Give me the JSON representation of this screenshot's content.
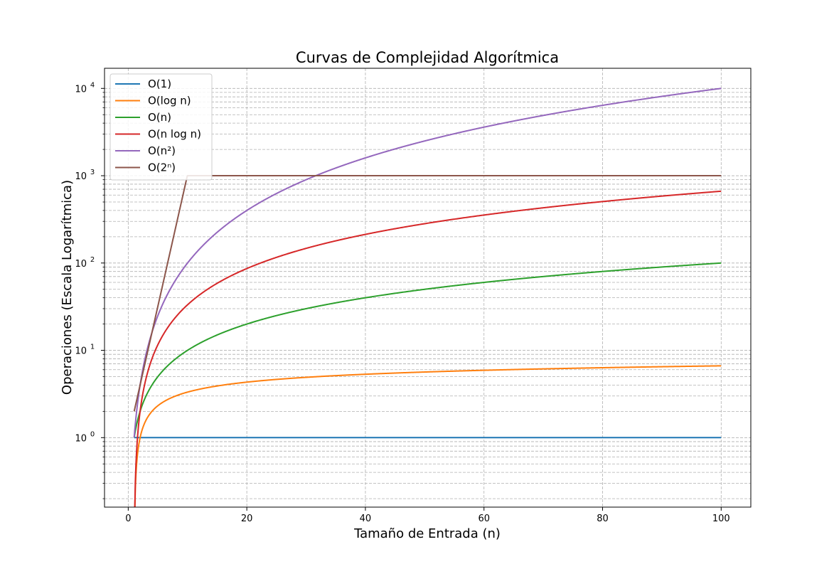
{
  "chart_data": {
    "type": "line",
    "title": "Curvas de Complejidad Algorítmica",
    "xlabel": "Tamaño de Entrada (n)",
    "ylabel": "Operaciones (Escala Logarítmica)",
    "xlim": [
      -4,
      105
    ],
    "ylim": [
      0.16,
      17000
    ],
    "yscale": "log",
    "grid": true,
    "grid_which": "both",
    "legend_position": "upper-left",
    "x_ticks": [
      0,
      20,
      40,
      60,
      80,
      100
    ],
    "x_tick_labels": [
      "0",
      "20",
      "40",
      "60",
      "80",
      "100"
    ],
    "y_ticks": [
      1,
      10,
      100,
      1000,
      10000
    ],
    "y_tick_base": "10",
    "y_tick_exponents": [
      "0",
      "1",
      "2",
      "3",
      "4"
    ],
    "x_domain": [
      1,
      100
    ],
    "series": [
      {
        "name": "O(1)",
        "color": "#1f77b4",
        "formula": "constant",
        "y_start": 1,
        "y_end": 1
      },
      {
        "name": "O(log n)",
        "color": "#ff7f0e",
        "formula": "log",
        "y_start": 0,
        "y_end": 6.64
      },
      {
        "name": "O(n)",
        "color": "#2ca02c",
        "formula": "linear",
        "y_start": 1,
        "y_end": 100
      },
      {
        "name": "O(n log n)",
        "color": "#d62728",
        "formula": "nlogn",
        "y_start": 0,
        "y_end": 664
      },
      {
        "name": "O(n²)",
        "color": "#9467bd",
        "formula": "quadratic",
        "y_start": 1,
        "y_end": 10000
      },
      {
        "name": "O(2ⁿ)",
        "color": "#8c564b",
        "formula": "exponential_capped",
        "y_start": 2,
        "y_cap": 1000,
        "cap_at_x": 10
      }
    ]
  }
}
